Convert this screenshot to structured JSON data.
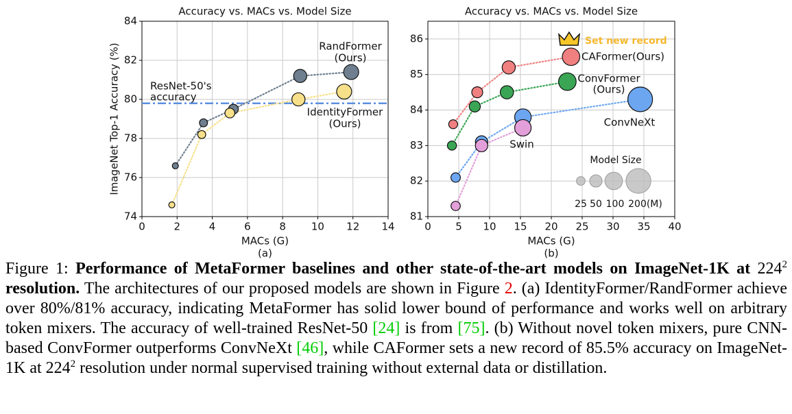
{
  "chart_data": [
    {
      "type": "scatter",
      "title": "Accuracy vs. MACs vs. Model Size",
      "xlabel": "MACs (G)",
      "ylabel": "ImageNet Top-1 Accuracy (%)",
      "sublabel": "(a)",
      "xlim": [
        0,
        14
      ],
      "ylim": [
        74,
        84
      ],
      "xticks": [
        0,
        2,
        4,
        6,
        8,
        10,
        12,
        14
      ],
      "yticks": [
        74,
        76,
        78,
        80,
        82,
        84
      ],
      "grid": true,
      "series": [
        {
          "name": "RandFormer",
          "note": "(Ours)",
          "color": "#6f7f90",
          "x": [
            1.9,
            3.5,
            5.2,
            9.0,
            11.9
          ],
          "values": [
            76.6,
            78.8,
            79.5,
            81.2,
            81.4
          ],
          "sizes": [
            12,
            21,
            31,
            56,
            73
          ]
        },
        {
          "name": "IdentityFormer",
          "note": "(Ours)",
          "color": "#f7e08a",
          "x": [
            1.7,
            3.4,
            5.0,
            8.9,
            11.5
          ],
          "values": [
            74.6,
            78.2,
            79.3,
            80.0,
            80.4
          ],
          "sizes": [
            12,
            21,
            31,
            56,
            73
          ]
        }
      ],
      "reference": {
        "value": 79.8,
        "label": [
          "ResNet-50's",
          "accuracy"
        ],
        "color": "#5b8fe0"
      }
    },
    {
      "type": "scatter",
      "title": "Accuracy vs. MACs vs. Model Size",
      "xlabel": "MACs (G)",
      "sublabel": "(b)",
      "xlim": [
        0,
        40
      ],
      "ylim": [
        81,
        86.5
      ],
      "xticks": [
        0,
        5,
        10,
        15,
        20,
        25,
        30,
        35,
        40
      ],
      "yticks": [
        81,
        82,
        83,
        84,
        85,
        86
      ],
      "grid": true,
      "series": [
        {
          "name": "CAFormer",
          "note": "(Ours)",
          "color": "#f08080",
          "x": [
            4.1,
            8.0,
            13.1,
            23.2
          ],
          "values": [
            83.6,
            84.5,
            85.2,
            85.5
          ],
          "sizes": [
            26,
            39,
            56,
            99
          ]
        },
        {
          "name": "ConvFormer",
          "note": "(Ours)",
          "color": "#3aa655",
          "x": [
            3.9,
            7.6,
            12.8,
            22.6
          ],
          "values": [
            83.0,
            84.1,
            84.5,
            84.8
          ],
          "sizes": [
            27,
            40,
            57,
            100
          ]
        },
        {
          "name": "ConvNeXt",
          "color": "#6ca6f0",
          "x": [
            4.5,
            8.7,
            15.4,
            34.4
          ],
          "values": [
            82.1,
            83.1,
            83.8,
            84.3
          ],
          "sizes": [
            29,
            50,
            89,
            198
          ]
        },
        {
          "name": "Swin",
          "color": "#e39fd9",
          "x": [
            4.5,
            8.7,
            15.4
          ],
          "values": [
            81.3,
            83.0,
            83.5
          ],
          "sizes": [
            28,
            50,
            88
          ]
        }
      ],
      "annotation": {
        "text": "Set new record",
        "color": "#f5b82e"
      },
      "size_legend": {
        "title": "Model Size",
        "sizes": [
          25,
          50,
          100,
          200
        ],
        "labels": [
          "25",
          "50",
          "100",
          "200(M)"
        ],
        "color": "#bbbbbb"
      }
    }
  ],
  "caption": [
    {
      "text": "Figure 1:",
      "style": "normal"
    },
    {
      "text": "  Performance of MetaFormer baselines and other state-of-the-art models on ImageNet-1K at ",
      "style": "bold"
    },
    {
      "text": "224",
      "style": "normal"
    },
    {
      "text": "2",
      "style": "sup"
    },
    {
      "text": " resolution.",
      "style": "bold"
    },
    {
      "text": " The architectures of our proposed models are shown in Figure ",
      "style": "normal"
    },
    {
      "text": "2",
      "style": "ref-red"
    },
    {
      "text": ". (a) IdentityFormer/RandFormer achieve over 80%/81% accuracy, indicating MetaFormer has solid lower bound of performance and works well on arbitrary token mixers. The accuracy of well-trained ResNet-50 ",
      "style": "normal"
    },
    {
      "text": "[24]",
      "style": "ref-green"
    },
    {
      "text": " is from ",
      "style": "normal"
    },
    {
      "text": "[75]",
      "style": "ref-green"
    },
    {
      "text": ". (b) Without novel token mixers, pure CNN-based ConvFormer outperforms ConvNeXt ",
      "style": "normal"
    },
    {
      "text": "[46]",
      "style": "ref-green"
    },
    {
      "text": ", while CAFormer sets a new record of 85.5% accuracy on ImageNet-1K at ",
      "style": "normal"
    },
    {
      "text": "224",
      "style": "normal"
    },
    {
      "text": "2",
      "style": "sup"
    },
    {
      "text": " resolution under normal supervised training without external data or distillation.",
      "style": "normal"
    }
  ]
}
